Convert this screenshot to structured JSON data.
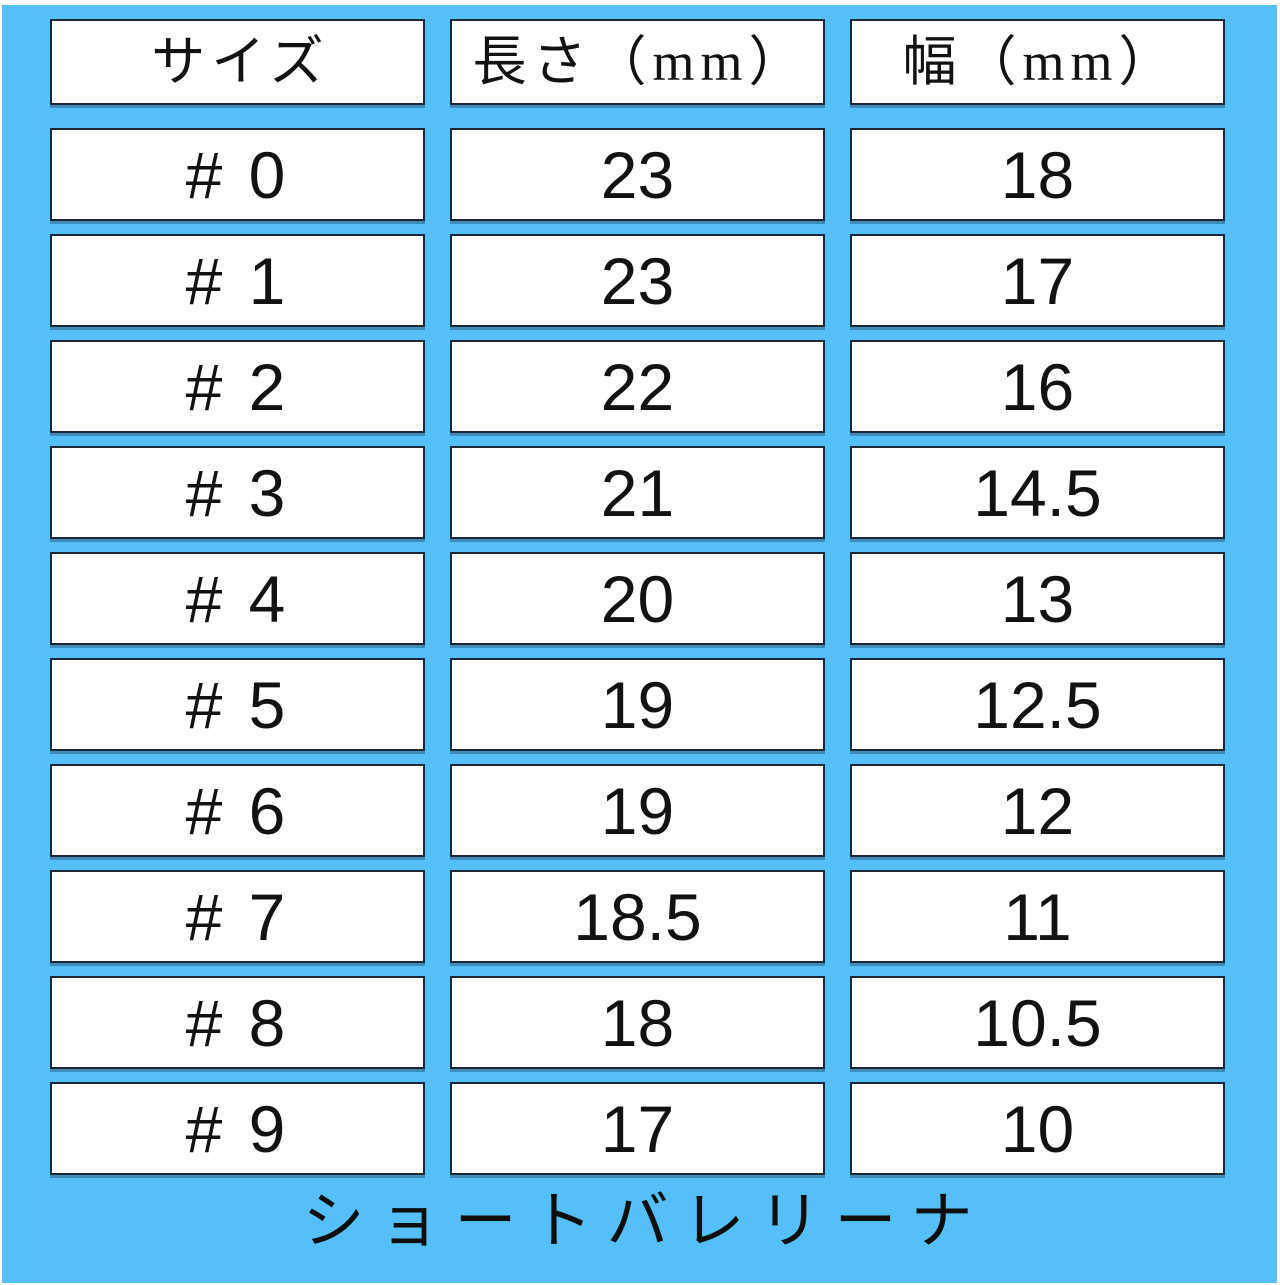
{
  "chart_data": {
    "type": "table",
    "title": "ショートバレリーナ",
    "columns": [
      "サイズ",
      "長さ（mm）",
      "幅（mm）"
    ],
    "sizes": [
      "# 0",
      "# 1",
      "# 2",
      "# 3",
      "# 4",
      "# 5",
      "# 6",
      "# 7",
      "# 8",
      "# 9"
    ],
    "length_mm": [
      23,
      23,
      22,
      21,
      20,
      19,
      19,
      18.5,
      18,
      17
    ],
    "width_mm": [
      18,
      17,
      16,
      14.5,
      13,
      12.5,
      12,
      11,
      10.5,
      10
    ],
    "rows": [
      [
        "# 0",
        "23",
        "18"
      ],
      [
        "# 1",
        "23",
        "17"
      ],
      [
        "# 2",
        "22",
        "16"
      ],
      [
        "# 3",
        "21",
        "14.5"
      ],
      [
        "# 4",
        "20",
        "13"
      ],
      [
        "# 5",
        "19",
        "12.5"
      ],
      [
        "# 6",
        "19",
        "12"
      ],
      [
        "# 7",
        "18.5",
        "11"
      ],
      [
        "# 8",
        "18",
        "10.5"
      ],
      [
        "# 9",
        "17",
        "10"
      ]
    ],
    "layout": {
      "grid": "off",
      "legend": "none"
    }
  },
  "colors": {
    "panel_background": "#55C0F8",
    "cell_background": "#FFFFFF",
    "cell_border": "#1E2735",
    "text": "#121212",
    "page_edge": "#FFFFFF"
  }
}
